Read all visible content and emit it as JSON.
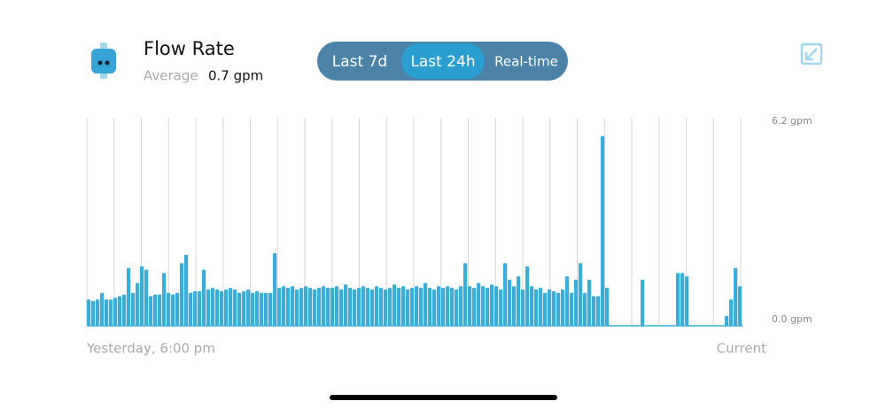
{
  "header": {
    "title": "Flow Rate",
    "average_label": "Average",
    "average_value": "0.7 gpm"
  },
  "tabs": [
    {
      "label": "Last 7d"
    },
    {
      "label": "Last 24h",
      "active": true
    },
    {
      "label": "Real-time"
    }
  ],
  "chart_data": {
    "type": "bar",
    "color": "#3aaed8",
    "x_labels": [
      "Yesterday, 6:00 pm",
      "Current"
    ],
    "ylim": [
      0,
      6.2
    ],
    "yticks": [
      {
        "value": 0,
        "label": "0.0 gpm"
      },
      {
        "value": 6.2,
        "label": "6.2 gpm"
      }
    ],
    "values": [
      0.8,
      0.75,
      0.8,
      1.0,
      0.8,
      0.8,
      0.85,
      0.9,
      0.95,
      1.75,
      1.0,
      1.3,
      1.8,
      1.7,
      0.9,
      0.95,
      0.95,
      1.6,
      1.0,
      0.95,
      1.0,
      1.9,
      2.15,
      1.0,
      1.05,
      1.05,
      1.7,
      1.1,
      1.15,
      1.1,
      1.05,
      1.1,
      1.15,
      1.1,
      1.0,
      1.05,
      1.1,
      1.0,
      1.05,
      1.0,
      1.0,
      1.0,
      2.2,
      1.15,
      1.2,
      1.15,
      1.2,
      1.1,
      1.15,
      1.2,
      1.15,
      1.1,
      1.15,
      1.2,
      1.15,
      1.15,
      1.2,
      1.1,
      1.25,
      1.15,
      1.1,
      1.15,
      1.2,
      1.15,
      1.1,
      1.2,
      1.15,
      1.1,
      1.15,
      1.25,
      1.15,
      1.2,
      1.1,
      1.15,
      1.2,
      1.15,
      1.3,
      1.15,
      1.1,
      1.2,
      1.15,
      1.2,
      1.15,
      1.1,
      1.2,
      1.9,
      1.2,
      1.15,
      1.3,
      1.2,
      1.15,
      1.25,
      1.2,
      1.1,
      1.9,
      1.4,
      1.2,
      1.5,
      1.1,
      1.8,
      1.2,
      1.1,
      1.15,
      1.0,
      1.1,
      1.05,
      1.0,
      1.1,
      1.5,
      1.0,
      1.4,
      1.9,
      1.0,
      1.4,
      0.9,
      0.9,
      5.75,
      1.15,
      0,
      0,
      0,
      0,
      0,
      0,
      0,
      1.4,
      0,
      0,
      0,
      0,
      0,
      0,
      0,
      1.6,
      1.6,
      1.5,
      0,
      0,
      0,
      0,
      0,
      0,
      0,
      0,
      0.3,
      0.8,
      1.75,
      1.2
    ]
  }
}
